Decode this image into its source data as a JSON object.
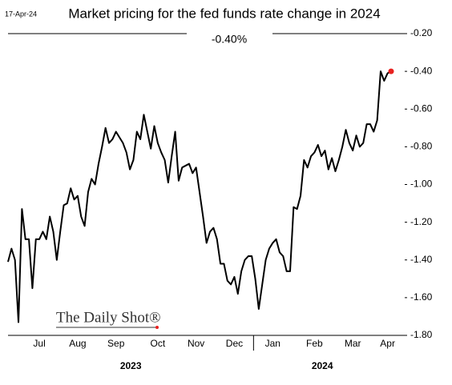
{
  "chart_data": {
    "type": "line",
    "title": "Market pricing for the fed funds rate change in 2024",
    "date_note": "17-Apr-24",
    "annotation": "-0.40%",
    "source": "The Daily Shot®",
    "categories": [
      null,
      null,
      null,
      null,
      null,
      null,
      null,
      null,
      null,
      "Jul",
      null,
      null,
      null,
      null,
      null,
      null,
      null,
      null,
      null,
      null,
      "Aug",
      null,
      null,
      null,
      null,
      null,
      null,
      null,
      null,
      null,
      null,
      "Sep",
      null,
      null,
      null,
      null,
      null,
      null,
      null,
      null,
      null,
      null,
      null,
      "Oct",
      null,
      null,
      null,
      null,
      null,
      null,
      null,
      null,
      null,
      null,
      "Nov",
      null,
      null,
      null,
      null,
      null,
      null,
      null,
      null,
      null,
      null,
      "Dec",
      null,
      null,
      null,
      null,
      null,
      null,
      null,
      null,
      null,
      null,
      "Jan",
      null,
      null,
      null,
      null,
      null,
      null,
      null,
      null,
      null,
      null,
      null,
      "Feb",
      null,
      null,
      null,
      null,
      null,
      null,
      null,
      null,
      null,
      null,
      "Mar",
      null,
      null,
      null,
      null,
      null,
      null,
      null,
      null,
      null,
      "Apr",
      null
    ],
    "x_groups": [
      {
        "label": "2023",
        "size": 71
      },
      {
        "label": "2024",
        "size": 40
      }
    ],
    "series": [
      {
        "color": "#000000",
        "last_point_color": "#e8211f",
        "values": [
          -1.41,
          -1.34,
          -1.4,
          -1.73,
          -1.13,
          -1.29,
          -1.29,
          -1.55,
          -1.29,
          -1.29,
          -1.25,
          -1.29,
          -1.17,
          -1.25,
          -1.4,
          -1.25,
          -1.11,
          -1.1,
          -1.02,
          -1.08,
          -1.06,
          -1.17,
          -1.22,
          -1.04,
          -0.97,
          -1.0,
          -0.89,
          -0.8,
          -0.7,
          -0.78,
          -0.76,
          -0.72,
          -0.75,
          -0.78,
          -0.83,
          -0.92,
          -0.87,
          -0.72,
          -0.76,
          -0.63,
          -0.72,
          -0.81,
          -0.69,
          -0.78,
          -0.83,
          -0.87,
          -0.99,
          -0.85,
          -0.72,
          -0.98,
          -0.91,
          -0.9,
          -0.89,
          -0.94,
          -0.91,
          -1.04,
          -1.17,
          -1.31,
          -1.25,
          -1.23,
          -1.29,
          -1.42,
          -1.42,
          -1.51,
          -1.53,
          -1.49,
          -1.58,
          -1.46,
          -1.4,
          -1.38,
          -1.38,
          -1.5,
          -1.66,
          -1.53,
          -1.4,
          -1.34,
          -1.31,
          -1.29,
          -1.36,
          -1.38,
          -1.46,
          -1.46,
          -1.12,
          -1.13,
          -1.06,
          -0.87,
          -0.91,
          -0.85,
          -0.83,
          -0.79,
          -0.85,
          -0.82,
          -0.92,
          -0.86,
          -0.93,
          -0.87,
          -0.8,
          -0.71,
          -0.78,
          -0.82,
          -0.74,
          -0.8,
          -0.78,
          -0.68,
          -0.68,
          -0.72,
          -0.66,
          -0.4,
          -0.45,
          -0.41,
          -0.4
        ]
      }
    ],
    "ylim": [
      -1.8,
      -0.2
    ],
    "yticks": [
      {
        "value": -0.2,
        "label": "-0.20"
      },
      {
        "value": -0.4,
        "label": "-0.40"
      },
      {
        "value": -0.6,
        "label": "-0.60"
      },
      {
        "value": -0.8,
        "label": "-0.80"
      },
      {
        "value": -1.0,
        "label": "-1.00"
      },
      {
        "value": -1.2,
        "label": "-1.20"
      },
      {
        "value": -1.4,
        "label": "-1.40"
      },
      {
        "value": -1.6,
        "label": "-1.60"
      },
      {
        "value": -1.8,
        "label": "-1.80"
      }
    ]
  }
}
